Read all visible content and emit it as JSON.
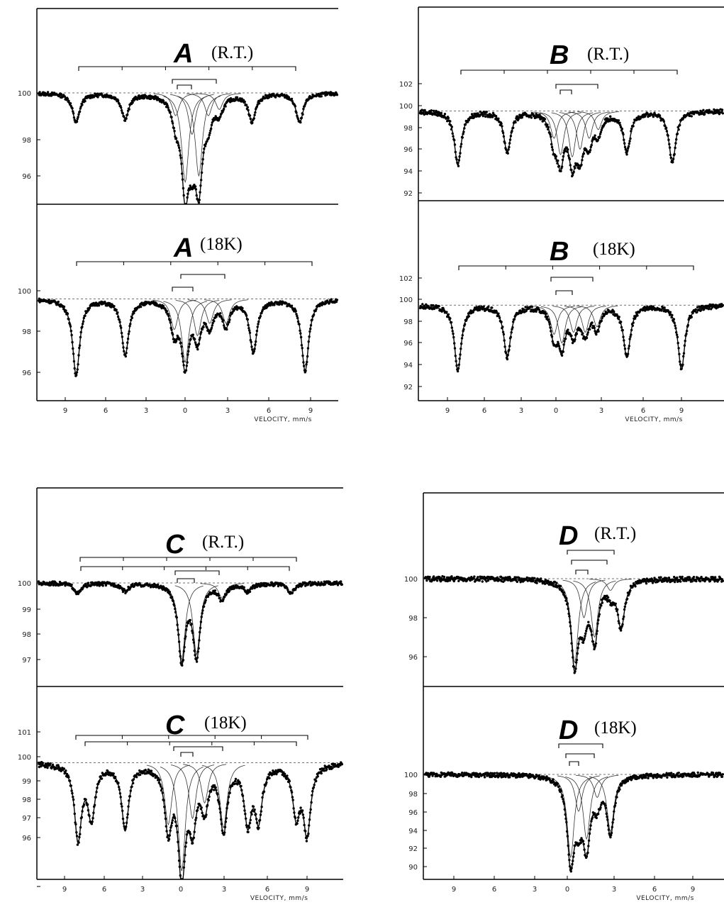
{
  "figure": {
    "x_label": "VELOCITY, mm/s",
    "x_ticks": [
      "9",
      "6",
      "3",
      "0",
      "3",
      "6",
      "9"
    ]
  },
  "chart_data": [
    {
      "type": "scatter",
      "letter": "A",
      "condition": "(R.T.)",
      "y_ticks": [
        "100",
        "98",
        "96"
      ],
      "ylim": [
        94.8,
        102.2
      ],
      "baseline": 100,
      "absorption_lines_mm_s": [
        -8.2,
        -4.6,
        -0.9,
        -0.2,
        0.3,
        0.8,
        1.5,
        2.3,
        4.7,
        8.2
      ],
      "absorption_min_percent": [
        98.6,
        98.8,
        98.9,
        95.7,
        98.0,
        96.0,
        98.9,
        99.2,
        98.7,
        98.6
      ]
    },
    {
      "type": "scatter",
      "letter": "A",
      "condition": "(18K)",
      "y_ticks": [
        "100",
        "98",
        "96"
      ],
      "ylim": [
        94.9,
        102.7
      ],
      "baseline": 99.6,
      "absorption_lines_mm_s": [
        -8.2,
        -4.6,
        -1.0,
        -0.2,
        0.7,
        1.6,
        2.8,
        4.8,
        8.6
      ],
      "absorption_min_percent": [
        95.9,
        96.9,
        98.1,
        96.5,
        97.8,
        98.4,
        98.4,
        97.0,
        96.1
      ]
    },
    {
      "type": "scatter",
      "letter": "B",
      "condition": "(R.T.)",
      "y_ticks": [
        "102",
        "100",
        "98",
        "96",
        "94",
        "92"
      ],
      "ylim": [
        91.0,
        110.0
      ],
      "baseline": 99.5,
      "absorption_lines_mm_s": [
        -8.2,
        -4.4,
        -0.8,
        -0.3,
        0.6,
        1.2,
        1.9,
        2.6,
        4.8,
        8.3
      ],
      "absorption_min_percent": [
        94.6,
        95.8,
        97.0,
        95.5,
        95.3,
        96.0,
        97.0,
        97.8,
        95.8,
        94.8
      ]
    },
    {
      "type": "scatter",
      "letter": "B",
      "condition": "(18K)",
      "y_ticks": [
        "102",
        "100",
        "98",
        "96",
        "94",
        "92"
      ],
      "ylim": [
        91.0,
        109.8
      ],
      "baseline": 99.5,
      "absorption_lines_mm_s": [
        -8.2,
        -4.4,
        -0.8,
        -0.2,
        0.7,
        1.6,
        2.5,
        4.8,
        9.0
      ],
      "absorption_min_percent": [
        93.5,
        94.8,
        96.8,
        96.0,
        97.0,
        97.0,
        97.5,
        94.8,
        93.6
      ]
    },
    {
      "type": "scatter",
      "letter": "C",
      "condition": "(R.T.)",
      "y_ticks": [
        "100",
        "99",
        "98",
        "97"
      ],
      "ylim": [
        96.1,
        102.4
      ],
      "baseline": 100,
      "absorption_lines_mm_s": [
        -8.0,
        -4.5,
        -0.3,
        0.8,
        2.7,
        4.6,
        7.8
      ],
      "absorption_min_percent": [
        99.6,
        99.7,
        97.0,
        97.2,
        99.4,
        99.7,
        99.6
      ]
    },
    {
      "type": "scatter",
      "letter": "C",
      "condition": "(18K)",
      "y_ticks": [
        "101",
        "100",
        "99",
        "98",
        "97",
        "96"
      ],
      "ylim": [
        95.5,
        102.8
      ],
      "baseline": 100,
      "absorption_lines_mm_s": [
        -8.0,
        -7.0,
        -4.5,
        -1.3,
        -0.3,
        0.5,
        1.4,
        2.8,
        4.6,
        5.4,
        8.2,
        9.0
      ],
      "absorption_min_percent": [
        97.6,
        98.3,
        97.9,
        98.0,
        96.5,
        98.2,
        98.7,
        97.9,
        98.2,
        98.3,
        98.4,
        97.8
      ]
    },
    {
      "type": "scatter",
      "letter": "D",
      "condition": "(R.T.)",
      "y_ticks": [
        "100",
        "98",
        "96"
      ],
      "ylim": [
        94.5,
        105.5
      ],
      "baseline": 100,
      "absorption_lines_mm_s": [
        0.1,
        0.8,
        1.6,
        2.8,
        3.6
      ],
      "absorption_min_percent": [
        95.7,
        98.0,
        97.0,
        99.4,
        97.6
      ]
    },
    {
      "type": "scatter",
      "letter": "D",
      "condition": "(18K)",
      "y_ticks": [
        "100",
        "98",
        "96",
        "94",
        "92",
        "90"
      ],
      "ylim": [
        89.0,
        109.4
      ],
      "baseline": 100,
      "absorption_lines_mm_s": [
        -0.2,
        0.4,
        1.0,
        1.8,
        2.8
      ],
      "absorption_min_percent": [
        91.0,
        96.0,
        93.0,
        97.5,
        93.8
      ]
    }
  ]
}
